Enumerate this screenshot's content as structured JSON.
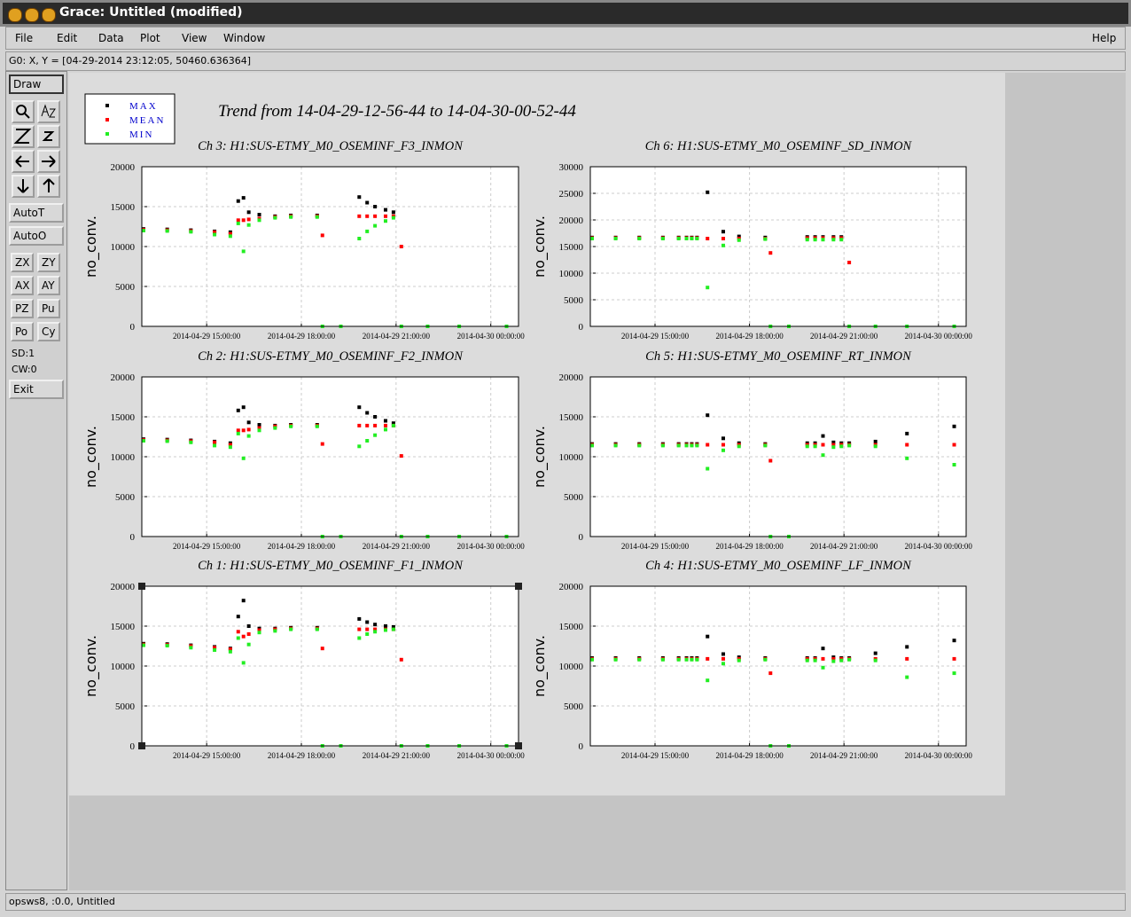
{
  "window_title": "Grace: Untitled (modified)",
  "menus": [
    "File",
    "Edit",
    "Data",
    "Plot",
    "View",
    "Window"
  ],
  "help": "Help",
  "locator": "G0: X, Y = [04-29-2014 23:12:05, 50460.636364]",
  "buttons": {
    "draw": "Draw",
    "auto": [
      "AutoT",
      "AutoO"
    ],
    "pairs": [
      [
        "ZX",
        "ZY"
      ],
      [
        "AX",
        "AY"
      ],
      [
        "PZ",
        "Pu"
      ],
      [
        "Po",
        "Cy"
      ]
    ],
    "exit": "Exit"
  },
  "stack_labels": [
    "SD:1",
    "CW:0"
  ],
  "footer": "opsws8, :0.0, Untitled",
  "trend_title": "Trend from 14-04-29-12-56-44 to 14-04-30-00-52-44",
  "chart_data": [
    {
      "type": "scatter",
      "title": "Ch 3: H1:SUS-ETMY_M0_OSEMINF_F3_INMON",
      "ylabel": "no_conv.",
      "x": [
        "2014-04-29 13:00:00",
        "2014-04-29 13:45:00",
        "2014-04-29 14:30:00",
        "2014-04-29 15:15:00",
        "2014-04-29 15:45:00",
        "2014-04-29 16:00:00",
        "2014-04-29 16:10:00",
        "2014-04-29 16:20:00",
        "2014-04-29 16:40:00",
        "2014-04-29 17:10:00",
        "2014-04-29 17:40:00",
        "2014-04-29 18:30:00",
        "2014-04-29 18:40:00",
        "2014-04-29 19:15:00",
        "2014-04-29 19:50:00",
        "2014-04-29 20:05:00",
        "2014-04-29 20:20:00",
        "2014-04-29 20:40:00",
        "2014-04-29 20:55:00",
        "2014-04-29 21:10:00",
        "2014-04-29 22:00:00",
        "2014-04-29 23:00:00",
        "2014-04-30 00:30:00"
      ],
      "xlim": [
        "2014-04-29 12:56:44",
        "2014-04-30 00:52:44"
      ],
      "xticks": [
        "2014-04-29 15:00:00",
        "2014-04-29 18:00:00",
        "2014-04-29 21:00:00",
        "2014-04-30 00:00:00"
      ],
      "ylim": [
        0,
        20000
      ],
      "yticks": [
        0,
        5000,
        10000,
        15000,
        20000
      ],
      "grid": true,
      "series": [
        {
          "name": "MAX",
          "color": "#000000",
          "values": [
            12200,
            12150,
            12050,
            11900,
            11800,
            15700,
            16100,
            14300,
            14000,
            13800,
            13900,
            13900,
            null,
            null,
            16200,
            15500,
            15000,
            14600,
            14300,
            null,
            null,
            null,
            null
          ]
        },
        {
          "name": "MEAN",
          "color": "#ff0000",
          "values": [
            12100,
            12050,
            11950,
            11800,
            11600,
            13300,
            13300,
            13400,
            13500,
            13700,
            13800,
            13800,
            11400,
            null,
            13800,
            13800,
            13800,
            13800,
            13800,
            10000,
            null,
            null,
            null
          ]
        },
        {
          "name": "MIN",
          "color": "#22ee22",
          "values": [
            12000,
            11950,
            11850,
            11500,
            11300,
            12900,
            9400,
            12700,
            13300,
            13600,
            13700,
            13700,
            0,
            0,
            11000,
            11900,
            12600,
            13200,
            13600,
            0,
            0,
            0,
            0
          ]
        }
      ]
    },
    {
      "type": "scatter",
      "title": "Ch 6: H1:SUS-ETMY_M0_OSEMINF_SD_INMON",
      "ylabel": "no_conv.",
      "x": [
        "2014-04-29 13:00:00",
        "2014-04-29 13:45:00",
        "2014-04-29 14:30:00",
        "2014-04-29 15:15:00",
        "2014-04-29 15:45:00",
        "2014-04-29 16:00:00",
        "2014-04-29 16:10:00",
        "2014-04-29 16:20:00",
        "2014-04-29 16:40:00",
        "2014-04-29 17:10:00",
        "2014-04-29 17:40:00",
        "2014-04-29 18:30:00",
        "2014-04-29 18:40:00",
        "2014-04-29 19:15:00",
        "2014-04-29 19:50:00",
        "2014-04-29 20:05:00",
        "2014-04-29 20:20:00",
        "2014-04-29 20:40:00",
        "2014-04-29 20:55:00",
        "2014-04-29 21:10:00",
        "2014-04-29 22:00:00",
        "2014-04-29 23:00:00",
        "2014-04-30 00:30:00"
      ],
      "xlim": [
        "2014-04-29 12:56:44",
        "2014-04-30 00:52:44"
      ],
      "xticks": [
        "2014-04-29 15:00:00",
        "2014-04-29 18:00:00",
        "2014-04-29 21:00:00",
        "2014-04-30 00:00:00"
      ],
      "ylim": [
        0,
        30000
      ],
      "yticks": [
        0,
        5000,
        10000,
        15000,
        20000,
        25000,
        30000
      ],
      "grid": true,
      "series": [
        {
          "name": "MAX",
          "color": "#000000",
          "values": [
            16700,
            16700,
            16700,
            16700,
            16700,
            16700,
            16700,
            16700,
            25200,
            17800,
            16900,
            16700,
            null,
            null,
            16800,
            16800,
            16800,
            16800,
            16800,
            null,
            null,
            null,
            null
          ]
        },
        {
          "name": "MEAN",
          "color": "#ff0000",
          "values": [
            16600,
            16600,
            16600,
            16600,
            16600,
            16600,
            16600,
            16600,
            16500,
            16500,
            16500,
            16500,
            13800,
            null,
            16600,
            16600,
            16600,
            16600,
            16600,
            12000,
            null,
            null,
            null
          ]
        },
        {
          "name": "MIN",
          "color": "#22ee22",
          "values": [
            16500,
            16500,
            16500,
            16500,
            16500,
            16500,
            16500,
            16500,
            7300,
            15200,
            16200,
            16400,
            0,
            0,
            16300,
            16300,
            16300,
            16300,
            16300,
            0,
            0,
            0,
            0
          ]
        }
      ]
    },
    {
      "type": "scatter",
      "title": "Ch 2: H1:SUS-ETMY_M0_OSEMINF_F2_INMON",
      "ylabel": "no_conv.",
      "x": [
        "2014-04-29 13:00:00",
        "2014-04-29 13:45:00",
        "2014-04-29 14:30:00",
        "2014-04-29 15:15:00",
        "2014-04-29 15:45:00",
        "2014-04-29 16:00:00",
        "2014-04-29 16:10:00",
        "2014-04-29 16:20:00",
        "2014-04-29 16:40:00",
        "2014-04-29 17:10:00",
        "2014-04-29 17:40:00",
        "2014-04-29 18:30:00",
        "2014-04-29 18:40:00",
        "2014-04-29 19:15:00",
        "2014-04-29 19:50:00",
        "2014-04-29 20:05:00",
        "2014-04-29 20:20:00",
        "2014-04-29 20:40:00",
        "2014-04-29 20:55:00",
        "2014-04-29 21:10:00",
        "2014-04-29 22:00:00",
        "2014-04-29 23:00:00",
        "2014-04-30 00:30:00"
      ],
      "xlim": [
        "2014-04-29 12:56:44",
        "2014-04-30 00:52:44"
      ],
      "xticks": [
        "2014-04-29 15:00:00",
        "2014-04-29 18:00:00",
        "2014-04-29 21:00:00",
        "2014-04-30 00:00:00"
      ],
      "ylim": [
        0,
        20000
      ],
      "yticks": [
        0,
        5000,
        10000,
        15000,
        20000
      ],
      "grid": true,
      "series": [
        {
          "name": "MAX",
          "color": "#000000",
          "values": [
            12200,
            12150,
            12050,
            11900,
            11700,
            15800,
            16200,
            14300,
            14000,
            13900,
            14000,
            14000,
            null,
            null,
            16200,
            15500,
            15000,
            14500,
            14200,
            null,
            null,
            null,
            null
          ]
        },
        {
          "name": "MEAN",
          "color": "#ff0000",
          "values": [
            12100,
            12050,
            11950,
            11800,
            11500,
            13300,
            13300,
            13400,
            13600,
            13800,
            13900,
            13900,
            11600,
            null,
            13900,
            13900,
            13900,
            13900,
            13900,
            10100,
            null,
            null,
            null
          ]
        },
        {
          "name": "MIN",
          "color": "#22ee22",
          "values": [
            12000,
            11950,
            11800,
            11400,
            11200,
            12900,
            9800,
            12600,
            13300,
            13600,
            13800,
            13800,
            0,
            0,
            11300,
            12000,
            12700,
            13400,
            13900,
            0,
            0,
            0,
            0
          ]
        }
      ]
    },
    {
      "type": "scatter",
      "title": "Ch 5: H1:SUS-ETMY_M0_OSEMINF_RT_INMON",
      "ylabel": "no_conv.",
      "x": [
        "2014-04-29 13:00:00",
        "2014-04-29 13:45:00",
        "2014-04-29 14:30:00",
        "2014-04-29 15:15:00",
        "2014-04-29 15:45:00",
        "2014-04-29 16:00:00",
        "2014-04-29 16:10:00",
        "2014-04-29 16:20:00",
        "2014-04-29 16:40:00",
        "2014-04-29 17:10:00",
        "2014-04-29 17:40:00",
        "2014-04-29 18:30:00",
        "2014-04-29 18:40:00",
        "2014-04-29 19:15:00",
        "2014-04-29 19:50:00",
        "2014-04-29 20:05:00",
        "2014-04-29 20:20:00",
        "2014-04-29 20:40:00",
        "2014-04-29 20:55:00",
        "2014-04-29 21:10:00",
        "2014-04-29 22:00:00",
        "2014-04-29 23:00:00",
        "2014-04-30 00:30:00"
      ],
      "xlim": [
        "2014-04-29 12:56:44",
        "2014-04-30 00:52:44"
      ],
      "xticks": [
        "2014-04-29 15:00:00",
        "2014-04-29 18:00:00",
        "2014-04-29 21:00:00",
        "2014-04-30 00:00:00"
      ],
      "ylim": [
        0,
        20000
      ],
      "yticks": [
        0,
        5000,
        10000,
        15000,
        20000
      ],
      "grid": true,
      "series": [
        {
          "name": "MAX",
          "color": "#000000",
          "values": [
            11600,
            11600,
            11600,
            11600,
            11600,
            11600,
            11600,
            11600,
            15200,
            12300,
            11700,
            11600,
            null,
            null,
            11700,
            11700,
            12600,
            11800,
            11700,
            11700,
            11900,
            12900,
            13800
          ]
        },
        {
          "name": "MEAN",
          "color": "#ff0000",
          "values": [
            11500,
            11500,
            11500,
            11500,
            11500,
            11500,
            11500,
            11500,
            11500,
            11500,
            11500,
            11500,
            9500,
            null,
            11500,
            11500,
            11500,
            11500,
            11500,
            11500,
            11500,
            11500,
            11500
          ]
        },
        {
          "name": "MIN",
          "color": "#22ee22",
          "values": [
            11400,
            11400,
            11400,
            11400,
            11400,
            11400,
            11400,
            11400,
            8500,
            10800,
            11300,
            11400,
            0,
            0,
            11300,
            11300,
            10200,
            11200,
            11300,
            11400,
            11300,
            9800,
            9000
          ]
        }
      ]
    },
    {
      "type": "scatter",
      "title": "Ch 1: H1:SUS-ETMY_M0_OSEMINF_F1_INMON",
      "ylabel": "no_conv.",
      "x": [
        "2014-04-29 13:00:00",
        "2014-04-29 13:45:00",
        "2014-04-29 14:30:00",
        "2014-04-29 15:15:00",
        "2014-04-29 15:45:00",
        "2014-04-29 16:00:00",
        "2014-04-29 16:10:00",
        "2014-04-29 16:20:00",
        "2014-04-29 16:40:00",
        "2014-04-29 17:10:00",
        "2014-04-29 17:40:00",
        "2014-04-29 18:30:00",
        "2014-04-29 18:40:00",
        "2014-04-29 19:15:00",
        "2014-04-29 19:50:00",
        "2014-04-29 20:05:00",
        "2014-04-29 20:20:00",
        "2014-04-29 20:40:00",
        "2014-04-29 20:55:00",
        "2014-04-29 21:10:00",
        "2014-04-29 22:00:00",
        "2014-04-29 23:00:00",
        "2014-04-30 00:30:00"
      ],
      "xlim": [
        "2014-04-29 12:56:44",
        "2014-04-30 00:52:44"
      ],
      "xticks": [
        "2014-04-29 15:00:00",
        "2014-04-29 18:00:00",
        "2014-04-29 21:00:00",
        "2014-04-30 00:00:00"
      ],
      "ylim": [
        0,
        20000
      ],
      "yticks": [
        0,
        5000,
        10000,
        15000,
        20000
      ],
      "grid": true,
      "series": [
        {
          "name": "MAX",
          "color": "#000000",
          "values": [
            12800,
            12750,
            12600,
            12400,
            12200,
            16200,
            18200,
            15000,
            14700,
            14700,
            14800,
            14800,
            null,
            null,
            15900,
            15500,
            15200,
            15000,
            14900,
            null,
            null,
            null,
            null
          ]
        },
        {
          "name": "MEAN",
          "color": "#ff0000",
          "values": [
            12700,
            12650,
            12500,
            12300,
            12100,
            14300,
            13700,
            14000,
            14500,
            14600,
            14700,
            14700,
            12200,
            null,
            14600,
            14600,
            14600,
            14600,
            14600,
            10800,
            null,
            null,
            null
          ]
        },
        {
          "name": "MIN",
          "color": "#22ee22",
          "values": [
            12600,
            12550,
            12300,
            12000,
            11800,
            13500,
            10400,
            12700,
            14200,
            14400,
            14600,
            14600,
            0,
            0,
            13500,
            14000,
            14300,
            14500,
            14600,
            0,
            0,
            0,
            0
          ]
        }
      ]
    },
    {
      "type": "scatter",
      "title": "Ch 4: H1:SUS-ETMY_M0_OSEMINF_LF_INMON",
      "ylabel": "no_conv.",
      "x": [
        "2014-04-29 13:00:00",
        "2014-04-29 13:45:00",
        "2014-04-29 14:30:00",
        "2014-04-29 15:15:00",
        "2014-04-29 15:45:00",
        "2014-04-29 16:00:00",
        "2014-04-29 16:10:00",
        "2014-04-29 16:20:00",
        "2014-04-29 16:40:00",
        "2014-04-29 17:10:00",
        "2014-04-29 17:40:00",
        "2014-04-29 18:30:00",
        "2014-04-29 18:40:00",
        "2014-04-29 19:15:00",
        "2014-04-29 19:50:00",
        "2014-04-29 20:05:00",
        "2014-04-29 20:20:00",
        "2014-04-29 20:40:00",
        "2014-04-29 20:55:00",
        "2014-04-29 21:10:00",
        "2014-04-29 22:00:00",
        "2014-04-29 23:00:00",
        "2014-04-30 00:30:00"
      ],
      "xlim": [
        "2014-04-29 12:56:44",
        "2014-04-30 00:52:44"
      ],
      "xticks": [
        "2014-04-29 15:00:00",
        "2014-04-29 18:00:00",
        "2014-04-29 21:00:00",
        "2014-04-30 00:00:00"
      ],
      "ylim": [
        0,
        20000
      ],
      "yticks": [
        0,
        5000,
        10000,
        15000,
        20000
      ],
      "grid": true,
      "series": [
        {
          "name": "MAX",
          "color": "#000000",
          "values": [
            11000,
            11000,
            11000,
            11000,
            11000,
            11000,
            11000,
            11000,
            13700,
            11500,
            11100,
            11000,
            null,
            null,
            11000,
            11000,
            12200,
            11100,
            11000,
            11000,
            11600,
            12400,
            13200
          ]
        },
        {
          "name": "MEAN",
          "color": "#ff0000",
          "values": [
            10900,
            10900,
            10900,
            10900,
            10900,
            10900,
            10900,
            10900,
            10900,
            10900,
            10900,
            10900,
            9100,
            null,
            10900,
            10900,
            10900,
            10900,
            10900,
            10900,
            10900,
            10900,
            10900
          ]
        },
        {
          "name": "MIN",
          "color": "#22ee22",
          "values": [
            10800,
            10800,
            10800,
            10800,
            10800,
            10800,
            10800,
            10800,
            8200,
            10300,
            10700,
            10800,
            0,
            0,
            10700,
            10700,
            9800,
            10600,
            10700,
            10800,
            10700,
            8600,
            9100
          ]
        }
      ]
    }
  ]
}
